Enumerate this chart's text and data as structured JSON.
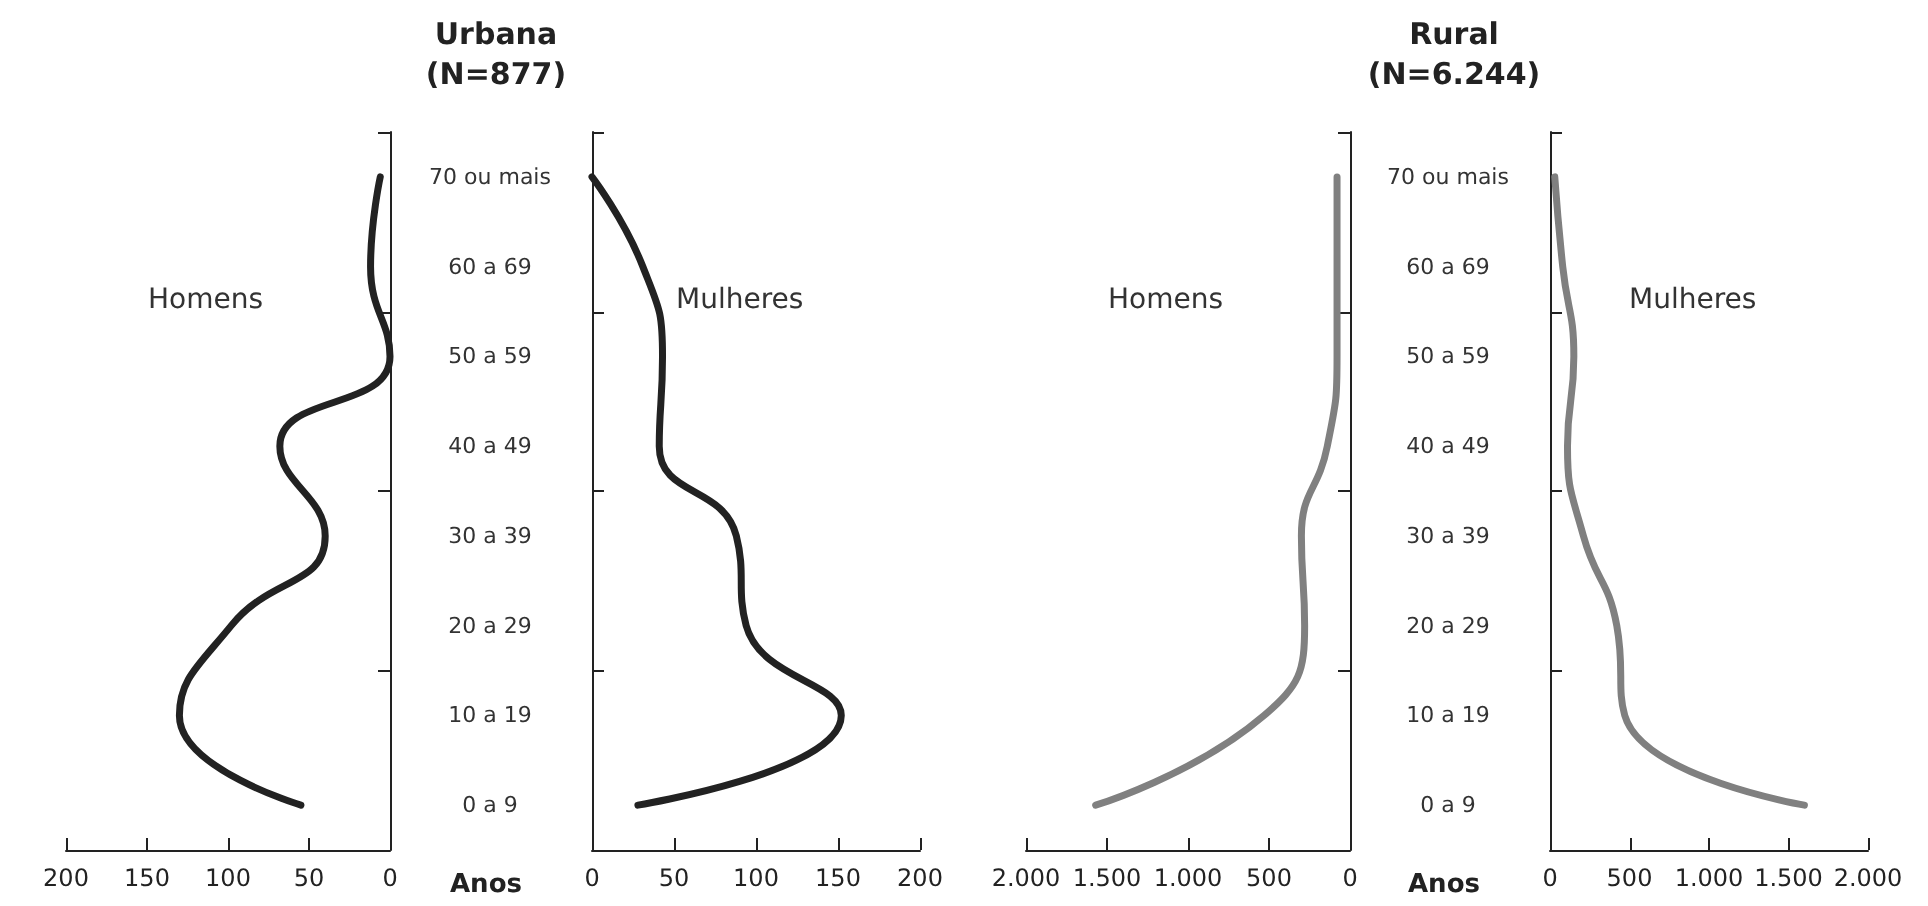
{
  "chart_data": [
    {
      "type": "line",
      "orientation": "horizontal",
      "marker": "none",
      "tick_labels": "x",
      "categories": [
        null,
        null,
        null,
        null,
        null,
        null,
        null,
        null
      ],
      "series": [
        {
          "name": "Homens",
          "color": "#222222",
          "values": [
            6,
            12,
            0,
            68,
            40,
            98,
            130,
            55
          ]
        }
      ],
      "xlim": [
        200,
        0
      ],
      "xticks": [
        200,
        150,
        100,
        50,
        0
      ]
    },
    {
      "type": "line",
      "orientation": "horizontal",
      "marker": "none",
      "title": "Urbana\n(N=877)",
      "ylabel": "Anos",
      "categories": [
        "70 ou mais",
        "60 a 69",
        "50 a 59",
        "40 a 49",
        "30 a 39",
        "20 a 29",
        "10 a 19",
        "0 a 9"
      ],
      "series": [
        {
          "name": "Mulheres",
          "color": "#222222",
          "values": [
            0,
            31,
            43,
            41,
            88,
            94,
            152,
            28
          ]
        }
      ],
      "xlim": [
        0,
        200
      ],
      "xticks": [
        0,
        50,
        100,
        150,
        200
      ]
    },
    {
      "type": "line",
      "orientation": "horizontal",
      "marker": "none",
      "tick_labels": "x",
      "categories": [
        null,
        null,
        null,
        null,
        null,
        null,
        null,
        null
      ],
      "series": [
        {
          "name": "Homens",
          "color": "#808080",
          "values": [
            80,
            80,
            80,
            140,
            300,
            280,
            530,
            1570
          ]
        }
      ],
      "xlim": [
        2000,
        0
      ],
      "xticks": [
        {
          "value": 2000,
          "label": "2.000"
        },
        {
          "value": 1500,
          "label": "1.500"
        },
        {
          "value": 1000,
          "label": "1.000"
        },
        500,
        0
      ]
    },
    {
      "type": "line",
      "orientation": "horizontal",
      "marker": "none",
      "title": "Rural\n(N=6.244)",
      "ylabel": "Anos",
      "categories": [
        "70 ou mais",
        "60 a 69",
        "50 a 59",
        "40 a 49",
        "30 a 39",
        "20 a 29",
        "10 a 19",
        "0 a 9"
      ],
      "series": [
        {
          "name": "Mulheres",
          "color": "#808080",
          "values": [
            30,
            80,
            150,
            110,
            210,
            420,
            470,
            1600
          ]
        }
      ],
      "xlim": [
        0,
        2000
      ],
      "xticks": [
        0,
        500,
        {
          "value": 1000,
          "label": "1.000"
        },
        {
          "value": 1500,
          "label": "1.500"
        },
        {
          "value": 2000,
          "label": "2.000"
        }
      ]
    }
  ]
}
